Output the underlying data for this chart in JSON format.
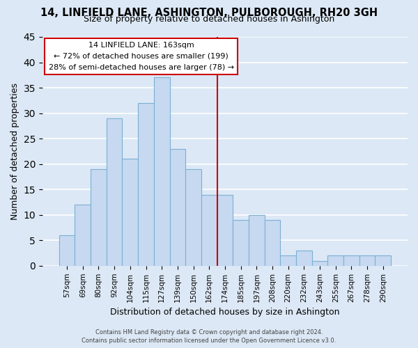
{
  "title": "14, LINFIELD LANE, ASHINGTON, PULBOROUGH, RH20 3GH",
  "subtitle": "Size of property relative to detached houses in Ashington",
  "xlabel": "Distribution of detached houses by size in Ashington",
  "ylabel": "Number of detached properties",
  "bar_labels": [
    "57sqm",
    "69sqm",
    "80sqm",
    "92sqm",
    "104sqm",
    "115sqm",
    "127sqm",
    "139sqm",
    "150sqm",
    "162sqm",
    "174sqm",
    "185sqm",
    "197sqm",
    "208sqm",
    "220sqm",
    "232sqm",
    "243sqm",
    "255sqm",
    "267sqm",
    "278sqm",
    "290sqm"
  ],
  "bar_heights": [
    6,
    12,
    19,
    29,
    21,
    32,
    37,
    23,
    19,
    14,
    14,
    9,
    10,
    9,
    2,
    3,
    1,
    2,
    2,
    2,
    2
  ],
  "bar_color": "#c6d9f0",
  "bar_edge_color": "#7bafd4",
  "vline_x": 9.5,
  "vline_color": "#cc0000",
  "ylim": [
    0,
    45
  ],
  "yticks": [
    0,
    5,
    10,
    15,
    20,
    25,
    30,
    35,
    40,
    45
  ],
  "annotation_title": "14 LINFIELD LANE: 163sqm",
  "annotation_line1": "← 72% of detached houses are smaller (199)",
  "annotation_line2": "28% of semi-detached houses are larger (78) →",
  "annotation_box_color": "#ffffff",
  "annotation_box_edge": "#cc0000",
  "footer1": "Contains HM Land Registry data © Crown copyright and database right 2024.",
  "footer2": "Contains public sector information licensed under the Open Government Licence v3.0.",
  "background_color": "#dce8f5",
  "plot_background": "#dce8f5",
  "grid_color": "#ffffff"
}
